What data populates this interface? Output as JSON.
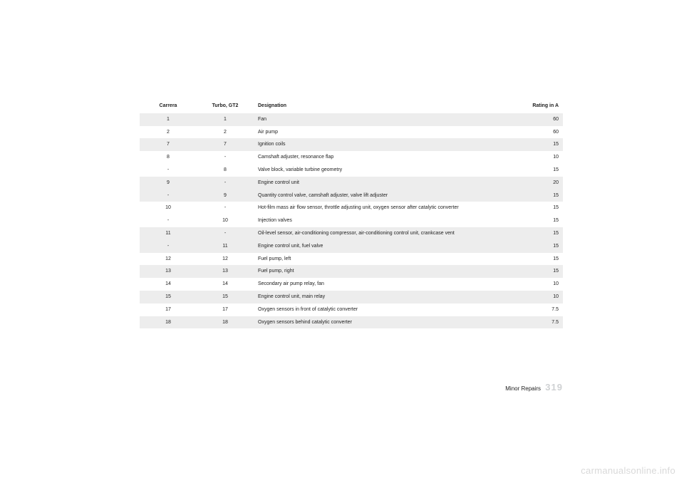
{
  "table": {
    "headers": {
      "col1": "Carrera",
      "col2": "Turbo, GT2",
      "col3": "Designation",
      "col4": "Rating in A"
    },
    "rows": [
      {
        "shade": true,
        "c1": "1",
        "c2": "1",
        "c3": "Fan",
        "c4": "60"
      },
      {
        "shade": false,
        "c1": "2",
        "c2": "2",
        "c3": "Air pump",
        "c4": "60"
      },
      {
        "shade": true,
        "c1": "7",
        "c2": "7",
        "c3": "Ignition coils",
        "c4": "15"
      },
      {
        "shade": false,
        "c1": "8",
        "c2": "-",
        "c3": "Camshaft adjuster, resonance flap",
        "c4": "10"
      },
      {
        "shade": false,
        "c1": "-",
        "c2": "8",
        "c3": "Valve block, variable turbine geometry",
        "c4": "15"
      },
      {
        "shade": true,
        "c1": "9",
        "c2": "-",
        "c3": "Engine control unit",
        "c4": "20"
      },
      {
        "shade": true,
        "c1": "-",
        "c2": "9",
        "c3": "Quantity control valve, camshaft adjuster, valve lift adjuster",
        "c4": "15"
      },
      {
        "shade": false,
        "c1": "10",
        "c2": "-",
        "c3": "Hot-film mass air flow sensor, throttle adjusting unit, oxygen sensor after catalytic converter",
        "c4": "15"
      },
      {
        "shade": false,
        "c1": "-",
        "c2": "10",
        "c3": "Injection valves",
        "c4": "15"
      },
      {
        "shade": true,
        "c1": "11",
        "c2": "-",
        "c3": "Oil-level sensor, air-conditioning compressor, air-conditioning control unit, crankcase vent",
        "c4": "15"
      },
      {
        "shade": true,
        "c1": "-",
        "c2": "11",
        "c3": "Engine control unit, fuel valve",
        "c4": "15"
      },
      {
        "shade": false,
        "c1": "12",
        "c2": "12",
        "c3": "Fuel pump, left",
        "c4": "15"
      },
      {
        "shade": true,
        "c1": "13",
        "c2": "13",
        "c3": "Fuel pump, right",
        "c4": "15"
      },
      {
        "shade": false,
        "c1": "14",
        "c2": "14",
        "c3": "Secondary air pump relay, fan",
        "c4": "10"
      },
      {
        "shade": true,
        "c1": "15",
        "c2": "15",
        "c3": "Engine control unit, main relay",
        "c4": "10"
      },
      {
        "shade": false,
        "c1": "17",
        "c2": "17",
        "c3": "Oxygen sensors in front of catalytic converter",
        "c4": "7.5"
      },
      {
        "shade": true,
        "c1": "18",
        "c2": "18",
        "c3": "Oxygen sensors behind catalytic converter",
        "c4": "7.5"
      }
    ]
  },
  "footer": {
    "section": "Minor Repairs",
    "page": "319"
  },
  "watermark": "carmanualsonline.info"
}
